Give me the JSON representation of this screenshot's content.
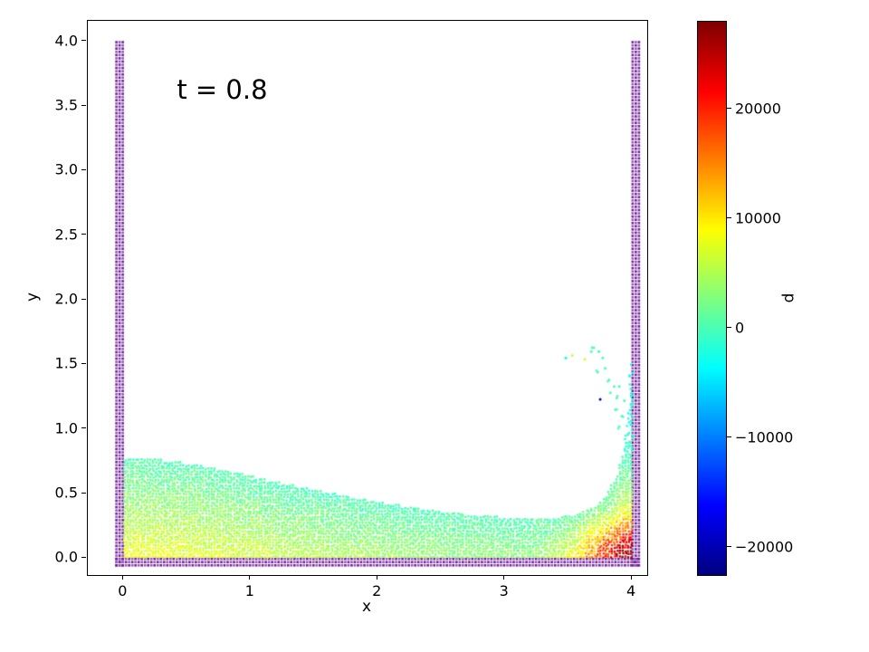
{
  "figure": {
    "background": "#ffffff"
  },
  "chart_data": {
    "type": "scatter",
    "description": "SPH dam-break fluid simulation particle plot, particles colored by pressure with jet colormap; solid boundary walls of dummy particles on left, right and bottom",
    "annotation": {
      "text": "t = 0.8",
      "x": 0.42,
      "y": 3.73
    },
    "xlabel": "x",
    "ylabel": "y",
    "xlim": [
      -0.28,
      4.12
    ],
    "ylim": [
      -0.13,
      4.16
    ],
    "x_ticks": [
      0,
      1,
      2,
      3,
      4
    ],
    "x_tick_labels": [
      "0",
      "1",
      "2",
      "3",
      "4"
    ],
    "y_ticks": [
      0,
      0.5,
      1,
      1.5,
      2,
      2.5,
      3,
      3.5,
      4
    ],
    "y_tick_labels": [
      "0.0",
      "0.5",
      "1.0",
      "1.5",
      "2.0",
      "2.5",
      "3.0",
      "3.5",
      "4.0"
    ],
    "colorbar": {
      "label": "p",
      "colormap": "jet",
      "vmin": -22500,
      "vmax": 28000,
      "ticks": [
        -20000,
        -10000,
        0,
        10000,
        20000
      ],
      "tick_labels": [
        "−20000",
        "−10000",
        "0",
        "10000",
        "20000"
      ]
    },
    "walls": {
      "spacing": 0.025,
      "dot_size": 2.6,
      "colors": [
        "#641f96",
        "#9d4fb5"
      ],
      "x_min": -0.055,
      "x_max": 4.055,
      "y_bottom": -0.055,
      "y_top": 4.0,
      "thickness": 0.05
    },
    "fluid": {
      "spacing": 0.022,
      "dot_size": 2.4,
      "jitter": 0.012,
      "x_start": 0.012,
      "x_end": 3.995,
      "surface_x": [
        0,
        0.3,
        0.6,
        0.9,
        1.2,
        1.5,
        1.8,
        2.1,
        2.4,
        2.7,
        3.0,
        3.2,
        3.4,
        3.55,
        3.7,
        3.8,
        3.88,
        3.93,
        3.96,
        4.0
      ],
      "surface_h": [
        0.78,
        0.76,
        0.72,
        0.66,
        0.59,
        0.53,
        0.47,
        0.42,
        0.375,
        0.34,
        0.315,
        0.305,
        0.315,
        0.335,
        0.4,
        0.5,
        0.63,
        0.8,
        1.0,
        1.58
      ],
      "sheet_sparse_above_y": 0.9,
      "sheet_skip_prob": 0.3,
      "pressure_model": {
        "hydrostatic_coeff": 11000,
        "depth_cap": 0.8,
        "min_pressure": -2500,
        "corner_center_x": 4.0,
        "corner_center_y": 0.0,
        "corner_amplitude": 19000,
        "corner_sigma_x": 0.28,
        "corner_sigma_y": 0.2,
        "noise": 1500,
        "corner_noise": 3000
      }
    },
    "droplets": [
      {
        "x": 3.48,
        "y": 1.55,
        "p": -2000
      },
      {
        "x": 3.53,
        "y": 1.57,
        "p": 6000
      },
      {
        "x": 3.63,
        "y": 1.54,
        "p": 7000
      },
      {
        "x": 3.7,
        "y": 1.63,
        "p": 0
      },
      {
        "x": 3.74,
        "y": 1.6,
        "p": 500
      },
      {
        "x": 3.77,
        "y": 1.55,
        "p": 0
      },
      {
        "x": 3.79,
        "y": 1.47,
        "p": 0
      },
      {
        "x": 3.73,
        "y": 1.44,
        "p": 0
      },
      {
        "x": 3.82,
        "y": 1.38,
        "p": 0
      },
      {
        "x": 3.86,
        "y": 1.33,
        "p": 500
      },
      {
        "x": 3.83,
        "y": 1.28,
        "p": 0
      },
      {
        "x": 3.88,
        "y": 1.24,
        "p": 0
      },
      {
        "x": 3.75,
        "y": 1.23,
        "p": -21000
      },
      {
        "x": 3.9,
        "y": 1.33,
        "p": 0
      },
      {
        "x": 3.87,
        "y": 1.15,
        "p": 0
      },
      {
        "x": 3.92,
        "y": 1.1,
        "p": 0
      },
      {
        "x": 3.9,
        "y": 1.02,
        "p": 500
      },
      {
        "x": 3.94,
        "y": 1.22,
        "p": 0
      },
      {
        "x": 3.95,
        "y": 0.95,
        "p": 0
      },
      {
        "x": 3.68,
        "y": 1.6,
        "p": 0
      }
    ]
  }
}
